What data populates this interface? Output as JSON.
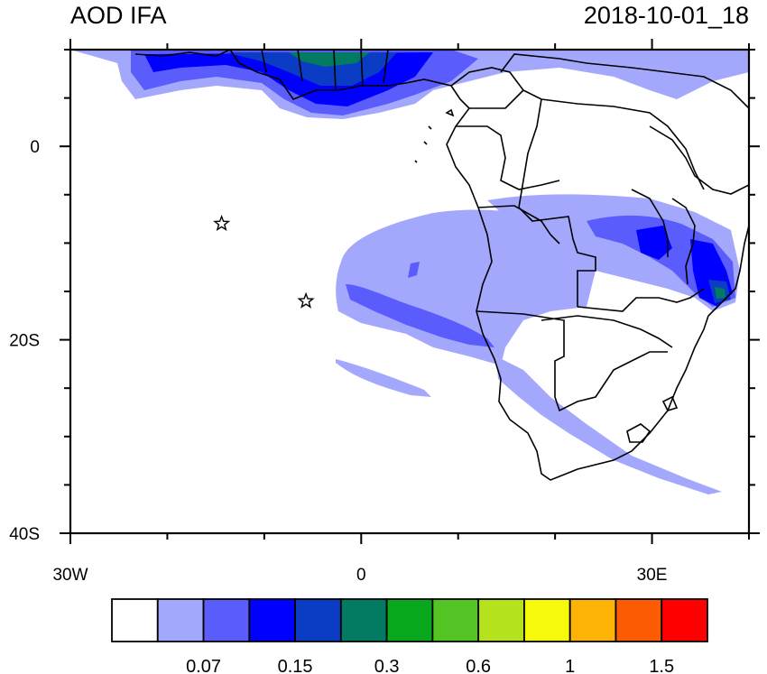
{
  "title_left": "AOD IFA",
  "title_right": "2018-10-01_18",
  "x_ticks": [
    {
      "label": "30W",
      "lon": -30
    },
    {
      "label": "0",
      "lon": 0
    },
    {
      "label": "30E",
      "lon": 30
    }
  ],
  "y_ticks": [
    {
      "label": "0",
      "lat": 0
    },
    {
      "label": "20S",
      "lat": -20
    },
    {
      "label": "40S",
      "lat": -40
    }
  ],
  "colorbar": {
    "colors": [
      "#ffffff",
      "#a4a8fd",
      "#5a5cfc",
      "#0000ff",
      "#0a3cc4",
      "#037b62",
      "#08a81e",
      "#53c424",
      "#b4e31d",
      "#f7f90a",
      "#fcb305",
      "#fe5b05",
      "#fd0000"
    ],
    "labels": [
      {
        "text": "0.07",
        "index": 1
      },
      {
        "text": "0.15",
        "index": 3
      },
      {
        "text": "0.3",
        "index": 5
      },
      {
        "text": "0.6",
        "index": 7
      },
      {
        "text": "1",
        "index": 9
      },
      {
        "text": "1.5",
        "index": 11
      }
    ]
  },
  "markers": [
    {
      "name": "star",
      "lon": -14.4,
      "lat": -8.0
    },
    {
      "name": "star",
      "lon": -5.7,
      "lat": -16.0
    }
  ],
  "extent": {
    "lon_min": -30,
    "lon_max": 40,
    "lat_min": -40,
    "lat_max": 10
  }
}
